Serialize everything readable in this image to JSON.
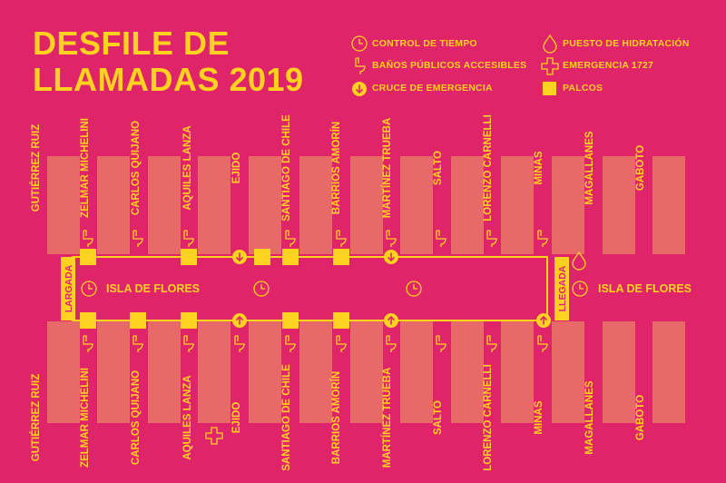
{
  "title": {
    "line1": "DESFILE DE",
    "line2": "LLAMADAS 2019"
  },
  "legend": {
    "control": "CONTROL DE TIEMPO",
    "hidratacion": "PUESTO DE HIDRATACIÓN",
    "banos": "BAÑOS PÚBLICOS ACCESIBLES",
    "emergencia": "EMERGENCIA 1727",
    "cruce": "CRUCE DE EMERGENCIA",
    "palcos": "PALCOS"
  },
  "colors": {
    "background": "#e0246a",
    "accent": "#ffd21f",
    "block": "#e76968"
  },
  "route": {
    "name": "ISLA DE FLORES",
    "start": "LARGADA",
    "finish": "LLEGADA"
  },
  "streets": {
    "top": [
      "GUTIÉRREZ RUIZ",
      "ZELMAR MICHELINI",
      "CARLOS QUIJANO",
      "AQUILES LANZA",
      "EJIDO",
      "SANTIAGO DE CHILE",
      "BARRIOS AMORÍN",
      "MARTÍNEZ TRUEBA",
      "SALTO",
      "LORENZO CARNELLI",
      "MINAS",
      "MAGALLANES",
      "GABOTO"
    ],
    "bottom": [
      "GUTIÉRREZ RUIZ",
      "ZELMAR MICHELINI",
      "CARLOS QUIJANO",
      "AQUILES LANZA",
      "EJIDO",
      "SANTIAGO DE CHILE",
      "BARRIOS AMORÍN",
      "MARTÍNEZ TRUEBA",
      "SALTO",
      "LORENZO CARNELLI",
      "MINAS",
      "MAGALLANES",
      "GABOTO"
    ]
  },
  "icons": [
    "clock-icon",
    "toilet-icon",
    "arrow-circle-icon",
    "square-icon",
    "drop-icon",
    "cross-icon"
  ]
}
